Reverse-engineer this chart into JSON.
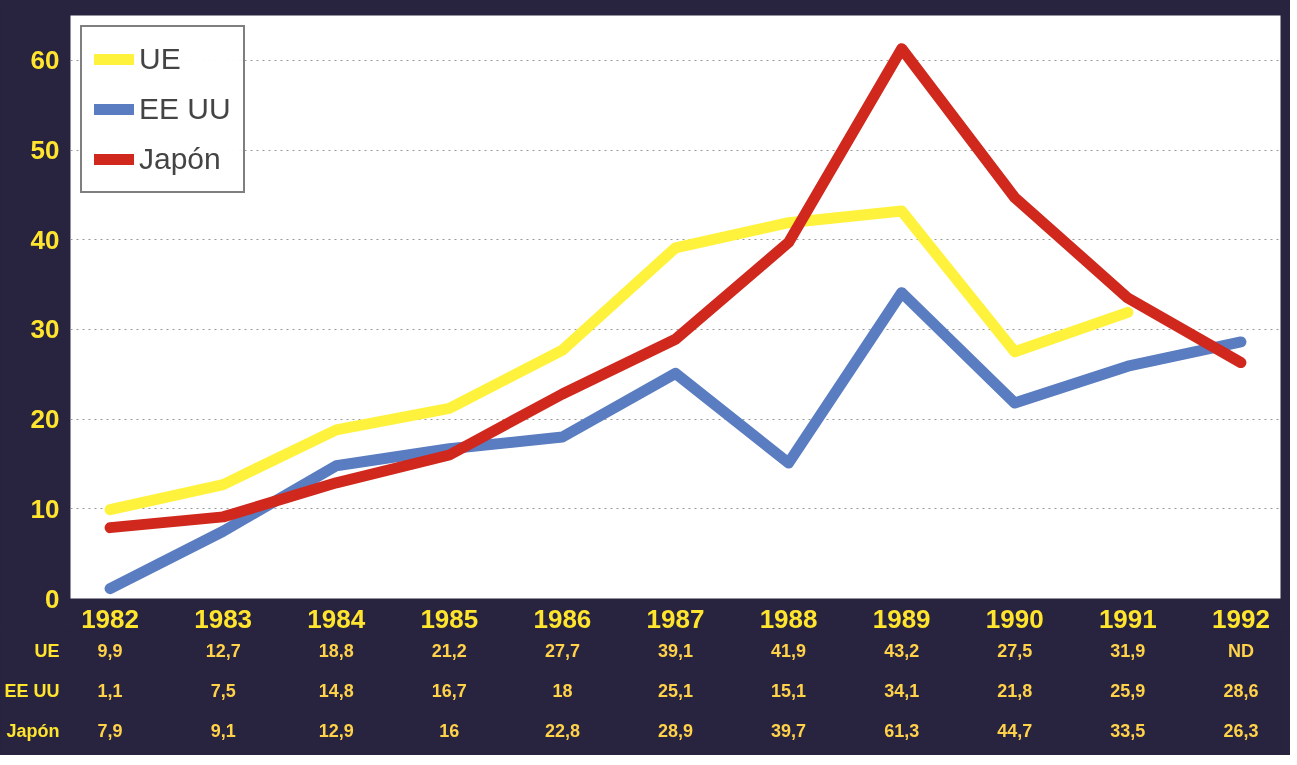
{
  "chart_data": {
    "type": "line",
    "categories": [
      "1982",
      "1983",
      "1984",
      "1985",
      "1986",
      "1987",
      "1988",
      "1989",
      "1990",
      "1991",
      "1992"
    ],
    "ylim": [
      0,
      65
    ],
    "yticks": [
      0,
      10,
      20,
      30,
      40,
      50,
      60
    ],
    "grid": "y",
    "legend": "top left",
    "line_style": "solid",
    "series": [
      {
        "name": "UE",
        "color": "#fff23c",
        "values": [
          9.9,
          12.7,
          18.8,
          21.2,
          27.7,
          39.1,
          41.9,
          43.2,
          27.5,
          31.9,
          null
        ],
        "value_labels": [
          "9,9",
          "12,7",
          "18,8",
          "21,2",
          "27,7",
          "39,1",
          "41,9",
          "43,2",
          "27,5",
          "31,9",
          "ND"
        ]
      },
      {
        "name": "EE UU",
        "color": "#5a7cc0",
        "values": [
          1.1,
          7.5,
          14.8,
          16.7,
          18,
          25.1,
          15.1,
          34.1,
          21.8,
          25.9,
          28.6
        ],
        "value_labels": [
          "1,1",
          "7,5",
          "14,8",
          "16,7",
          "18",
          "25,1",
          "15,1",
          "34,1",
          "21,8",
          "25,9",
          "28,6"
        ]
      },
      {
        "name": "Japón",
        "color": "#d0281c",
        "values": [
          7.9,
          9.1,
          12.9,
          16,
          22.8,
          28.9,
          39.7,
          61.3,
          44.7,
          33.5,
          26.3
        ],
        "value_labels": [
          "7,9",
          "9,1",
          "12,9",
          "16",
          "22,8",
          "28,9",
          "39,7",
          "61,3",
          "44,7",
          "33,5",
          "26,3"
        ]
      }
    ]
  }
}
